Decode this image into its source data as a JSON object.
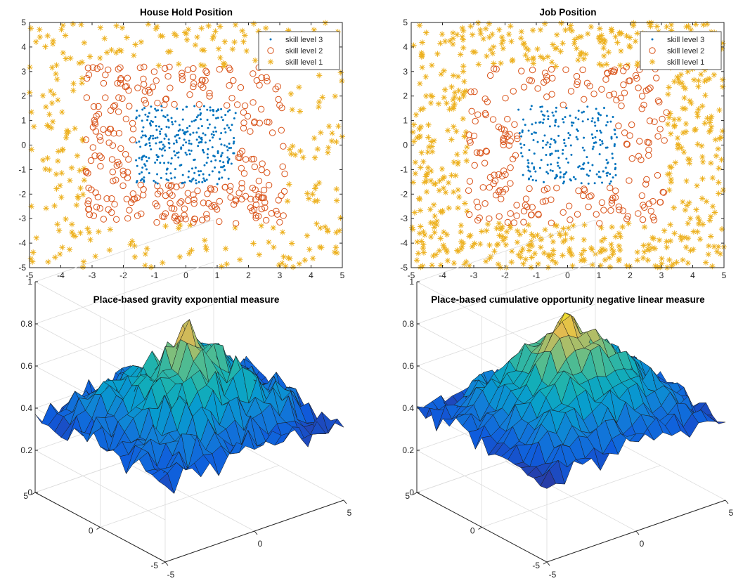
{
  "colors": {
    "skill_level_3": "#0072BD",
    "skill_level_2": "#D95319",
    "skill_level_1": "#EDB120",
    "axis": "#262626",
    "surface_colormap": "parula"
  },
  "chart_data": [
    {
      "type": "scatter",
      "title": "House Hold Position",
      "xlim": [
        -5,
        5
      ],
      "ylim": [
        -5,
        5
      ],
      "xticks": [
        -5,
        -4,
        -3,
        -2,
        -1,
        0,
        1,
        2,
        3,
        4,
        5
      ],
      "yticks": [
        -5,
        -4,
        -3,
        -2,
        -1,
        0,
        1,
        2,
        3,
        4,
        5
      ],
      "grid": false,
      "legend_position": "top-right",
      "series": [
        {
          "name": "skill level 3",
          "marker": "dot",
          "distribution": "uniform square",
          "x_range": [
            -1.6,
            1.6
          ],
          "y_range": [
            -1.6,
            1.6
          ],
          "count": 320
        },
        {
          "name": "skill level 2",
          "marker": "circle",
          "distribution": "square ring",
          "inner_halfwidth": 1.6,
          "outer_halfwidth": 3.2,
          "count": 300
        },
        {
          "name": "skill level 1",
          "marker": "asterisk",
          "distribution": "square ring",
          "inner_halfwidth": 3.2,
          "outer_halfwidth": 5,
          "count": 290
        }
      ]
    },
    {
      "type": "scatter",
      "title": "Job Position",
      "xlim": [
        -5,
        5
      ],
      "ylim": [
        -5,
        5
      ],
      "xticks": [
        -5,
        -4,
        -3,
        -2,
        -1,
        0,
        1,
        2,
        3,
        4,
        5
      ],
      "yticks": [
        -5,
        -4,
        -3,
        -2,
        -1,
        0,
        1,
        2,
        3,
        4,
        5
      ],
      "grid": false,
      "legend_position": "top-right",
      "series": [
        {
          "name": "skill level 3",
          "marker": "dot",
          "distribution": "uniform square",
          "x_range": [
            -1.6,
            1.6
          ],
          "y_range": [
            -1.6,
            1.6
          ],
          "count": 230
        },
        {
          "name": "skill level 2",
          "marker": "circle",
          "distribution": "square ring",
          "inner_halfwidth": 1.6,
          "outer_halfwidth": 3.2,
          "count": 220
        },
        {
          "name": "skill level 1",
          "marker": "asterisk",
          "distribution": "square ring",
          "inner_halfwidth": 3.2,
          "outer_halfwidth": 5,
          "count": 640
        }
      ]
    },
    {
      "type": "surface",
      "title": "Place-based gravity exponential measure",
      "xlim": [
        -5,
        5
      ],
      "ylim": [
        -5,
        5
      ],
      "zlim": [
        0,
        1
      ],
      "xticks": [
        -5,
        0,
        5
      ],
      "yticks": [
        -5,
        0,
        5
      ],
      "zticks": [
        0,
        0.2,
        0.4,
        0.6,
        0.8,
        1
      ],
      "zticklabels": [
        "0",
        "0.2",
        "0.4",
        "0.6",
        "0.8",
        "1"
      ],
      "grid": true,
      "grid_size": 20,
      "model": {
        "center_value": 0.78,
        "edge_value": 0.36,
        "noise_amplitude": 0.07,
        "seed": 11
      }
    },
    {
      "type": "surface",
      "title": "Place-based cumulative opportunity negative linear measure",
      "xlim": [
        -5,
        5
      ],
      "ylim": [
        -5,
        5
      ],
      "zlim": [
        0,
        1
      ],
      "xticks": [
        -5,
        0,
        5
      ],
      "yticks": [
        -5,
        0,
        5
      ],
      "zticks": [
        0,
        0.2,
        0.4,
        0.6,
        0.8,
        1
      ],
      "zticklabels": [
        "0",
        "0.2",
        "0.4",
        "0.6",
        "0.8",
        "1"
      ],
      "grid": true,
      "grid_size": 20,
      "model": {
        "center_value": 0.87,
        "edge_value": 0.38,
        "noise_amplitude": 0.055,
        "seed": 29
      }
    }
  ]
}
